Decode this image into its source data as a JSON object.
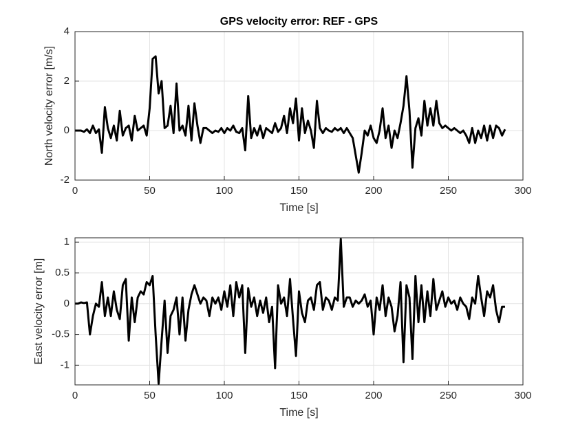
{
  "chart_data": [
    {
      "type": "line",
      "title": "GPS velocity error: REF - GPS",
      "xlabel": "Time [s]",
      "ylabel": "North velocity error [m/s]",
      "x": [
        0,
        2,
        4,
        6,
        8,
        10,
        12,
        14,
        16,
        18,
        20,
        22,
        24,
        26,
        28,
        30,
        32,
        34,
        36,
        38,
        40,
        42,
        44,
        46,
        48,
        50,
        52,
        54,
        56,
        58,
        60,
        62,
        64,
        66,
        68,
        70,
        72,
        74,
        76,
        78,
        80,
        82,
        84,
        86,
        88,
        90,
        92,
        94,
        96,
        98,
        100,
        102,
        104,
        106,
        108,
        110,
        112,
        114,
        116,
        118,
        120,
        122,
        124,
        126,
        128,
        130,
        132,
        134,
        136,
        138,
        140,
        142,
        144,
        146,
        148,
        150,
        152,
        154,
        156,
        158,
        160,
        162,
        164,
        166,
        168,
        170,
        172,
        174,
        176,
        178,
        180,
        182,
        184,
        186,
        188,
        190,
        192,
        194,
        196,
        198,
        200,
        202,
        204,
        206,
        208,
        210,
        212,
        214,
        216,
        218,
        220,
        222,
        224,
        226,
        228,
        230,
        232,
        234,
        236,
        238,
        240,
        242,
        244,
        246,
        248,
        250,
        252,
        254,
        256,
        258,
        260,
        262,
        264,
        266,
        268,
        270,
        272,
        274,
        276,
        278,
        280,
        282,
        284,
        286,
        288
      ],
      "series": [
        {
          "color": "#000000",
          "values": [
            0,
            0,
            0,
            -0.05,
            0.05,
            -0.1,
            0.2,
            -0.1,
            0.05,
            -0.9,
            0.95,
            0.1,
            -0.3,
            0.2,
            -0.4,
            0.8,
            -0.2,
            0.1,
            0.2,
            -0.4,
            0.6,
            0,
            0.1,
            0.2,
            -0.2,
            0.9,
            2.9,
            3.0,
            1.5,
            2.0,
            0.1,
            0.2,
            1.0,
            -0.1,
            1.9,
            0,
            0.2,
            -0.2,
            1.0,
            -0.4,
            1.1,
            0.2,
            -0.5,
            0.1,
            0.1,
            0,
            -0.1,
            0,
            -0.05,
            0.1,
            -0.1,
            0.1,
            0,
            0.2,
            -0.05,
            -0.1,
            0.1,
            -0.8,
            1.4,
            -0.3,
            0.1,
            -0.2,
            0.2,
            -0.3,
            0.1,
            0,
            -0.1,
            0.3,
            -0.05,
            0.1,
            0.6,
            -0.1,
            0.9,
            0.3,
            1.3,
            -0.4,
            0.9,
            -0.1,
            0.4,
            0,
            -0.7,
            1.2,
            0.1,
            -0.1,
            0.1,
            0,
            -0.05,
            0.1,
            0,
            0.1,
            -0.1,
            0.1,
            -0.1,
            -0.3,
            -1.0,
            -1.7,
            -0.9,
            0,
            -0.2,
            0.2,
            -0.3,
            -0.5,
            0,
            0.9,
            -0.3,
            0.2,
            -0.7,
            0,
            -0.3,
            0.3,
            1.0,
            2.2,
            0.8,
            -1.5,
            0.1,
            0.5,
            -0.2,
            1.2,
            0.2,
            0.9,
            0.2,
            1.2,
            0.3,
            0.1,
            0.2,
            0.1,
            0,
            0.1,
            0,
            -0.1,
            0,
            -0.2,
            -0.5,
            0.1,
            -0.5,
            0,
            -0.3,
            0.2,
            -0.4,
            0.2,
            -0.3,
            0.2,
            0.1,
            -0.2,
            0.05
          ]
        }
      ],
      "xlim": [
        0,
        300
      ],
      "xticks": [
        0,
        50,
        100,
        150,
        200,
        250,
        300
      ],
      "ylim": [
        -2,
        4
      ],
      "yticks": [
        -2,
        0,
        2,
        4
      ],
      "grid": true
    },
    {
      "type": "line",
      "xlabel": "Time [s]",
      "ylabel": "East velocity error [m]",
      "x": [
        0,
        2,
        4,
        6,
        8,
        10,
        12,
        14,
        16,
        18,
        20,
        22,
        24,
        26,
        28,
        30,
        32,
        34,
        36,
        38,
        40,
        42,
        44,
        46,
        48,
        50,
        52,
        54,
        56,
        58,
        60,
        62,
        64,
        66,
        68,
        70,
        72,
        74,
        76,
        78,
        80,
        82,
        84,
        86,
        88,
        90,
        92,
        94,
        96,
        98,
        100,
        102,
        104,
        106,
        108,
        110,
        112,
        114,
        116,
        118,
        120,
        122,
        124,
        126,
        128,
        130,
        132,
        134,
        136,
        138,
        140,
        142,
        144,
        146,
        148,
        150,
        152,
        154,
        156,
        158,
        160,
        162,
        164,
        166,
        168,
        170,
        172,
        174,
        176,
        178,
        180,
        182,
        184,
        186,
        188,
        190,
        192,
        194,
        196,
        198,
        200,
        202,
        204,
        206,
        208,
        210,
        212,
        214,
        216,
        218,
        220,
        222,
        224,
        226,
        228,
        230,
        232,
        234,
        236,
        238,
        240,
        242,
        244,
        246,
        248,
        250,
        252,
        254,
        256,
        258,
        260,
        262,
        264,
        266,
        268,
        270,
        272,
        274,
        276,
        278,
        280,
        282,
        284,
        286,
        288
      ],
      "series": [
        {
          "color": "#000000",
          "values": [
            0,
            0,
            0.02,
            0.01,
            0.02,
            -0.5,
            -0.2,
            0,
            -0.05,
            0.35,
            -0.2,
            0.1,
            -0.2,
            0.2,
            -0.1,
            -0.25,
            0.3,
            0.4,
            -0.6,
            0.1,
            -0.3,
            0.1,
            0.2,
            0.15,
            0.35,
            0.3,
            0.45,
            -0.5,
            -1.3,
            -0.6,
            0.05,
            -0.8,
            -0.2,
            -0.1,
            0.1,
            -0.5,
            0.1,
            -0.6,
            -0.1,
            0.15,
            0.3,
            0.15,
            0,
            0.1,
            0.05,
            -0.2,
            0.1,
            0,
            0.1,
            -0.1,
            0.2,
            -0.05,
            0.3,
            -0.2,
            0.35,
            0.1,
            0.3,
            -0.8,
            0.25,
            -0.05,
            0.1,
            -0.2,
            0.05,
            -0.15,
            0.1,
            -0.3,
            -0.05,
            -1.05,
            0.3,
            0,
            0.1,
            -0.2,
            0.4,
            -0.25,
            -0.85,
            0.2,
            -0.15,
            -0.3,
            0.05,
            0.1,
            -0.1,
            0.3,
            0.35,
            -0.1,
            0.1,
            0.05,
            -0.1,
            0.1,
            0.05,
            1.05,
            -0.05,
            0.1,
            0.1,
            -0.05,
            0.05,
            0,
            0.05,
            0.15,
            -0.05,
            0.05,
            -0.5,
            0.1,
            -0.1,
            0.3,
            -0.2,
            0.1,
            -0.05,
            -0.45,
            -0.2,
            0.35,
            -0.95,
            0.3,
            0.1,
            -0.9,
            0.45,
            -0.3,
            0.3,
            -0.3,
            0.2,
            -0.2,
            0.4,
            -0.1,
            0.05,
            0.2,
            -0.05,
            0.1,
            0,
            0.05,
            -0.1,
            0.1,
            0,
            -0.05,
            -0.25,
            0.1,
            0,
            0.45,
            0.1,
            -0.2,
            0.2,
            0.1,
            0.3,
            -0.1,
            -0.3,
            -0.05,
            -0.05
          ]
        }
      ],
      "xlim": [
        0,
        300
      ],
      "xticks": [
        0,
        50,
        100,
        150,
        200,
        250,
        300
      ],
      "ylim": [
        -1.32,
        1.07
      ],
      "yticks": [
        -1,
        -0.5,
        0,
        0.5,
        1
      ],
      "grid": true
    }
  ]
}
